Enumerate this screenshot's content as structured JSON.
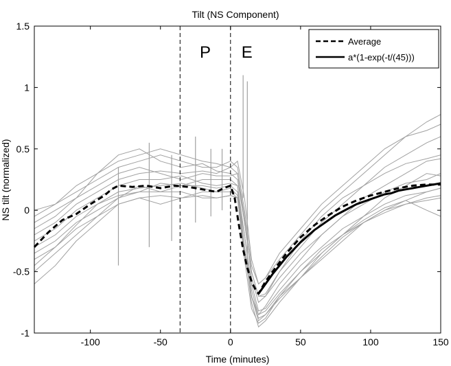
{
  "chart_data": {
    "type": "line",
    "title": "Tilt (NS Component)",
    "xlabel": "Time (minutes)",
    "ylabel": "NS tilt (normalized)",
    "xlim": [
      -140,
      150
    ],
    "ylim": [
      -1,
      1.5
    ],
    "xticks": [
      -100,
      -50,
      0,
      50,
      100,
      150
    ],
    "yticks": [
      -1,
      -0.5,
      0,
      0.5,
      1,
      1.5
    ],
    "grid": false,
    "legend_position": "top-right",
    "phase_lines": [
      {
        "x": -36,
        "label": "P"
      },
      {
        "x": 0,
        "label": "E"
      }
    ],
    "series": [
      {
        "name": "Average",
        "style": "dashed",
        "color": "#000000",
        "x": [
          -140,
          -130,
          -120,
          -110,
          -100,
          -90,
          -85,
          -80,
          -70,
          -60,
          -50,
          -40,
          -30,
          -20,
          -10,
          -5,
          0,
          3,
          6,
          9,
          12,
          15,
          18,
          20,
          22,
          25,
          30,
          40,
          50,
          60,
          70,
          80,
          90,
          100,
          110,
          120,
          130,
          140,
          150
        ],
        "y": [
          -0.3,
          -0.18,
          -0.08,
          -0.03,
          0.05,
          0.12,
          0.17,
          0.2,
          0.19,
          0.2,
          0.18,
          0.2,
          0.19,
          0.17,
          0.15,
          0.18,
          0.2,
          0.1,
          -0.12,
          -0.32,
          -0.47,
          -0.58,
          -0.65,
          -0.68,
          -0.64,
          -0.58,
          -0.5,
          -0.35,
          -0.22,
          -0.12,
          -0.04,
          0.03,
          0.08,
          0.12,
          0.15,
          0.18,
          0.2,
          0.21,
          0.21
        ]
      },
      {
        "name": "a*(1-exp(-t/(45)))",
        "style": "solid",
        "color": "#000000",
        "x": [
          20,
          25,
          30,
          35,
          40,
          45,
          50,
          55,
          60,
          65,
          70,
          75,
          80,
          85,
          90,
          95,
          100,
          105,
          110,
          115,
          120,
          125,
          130,
          135,
          140,
          145,
          150
        ],
        "y": [
          -0.68,
          -0.6,
          -0.52,
          -0.45,
          -0.38,
          -0.32,
          -0.26,
          -0.21,
          -0.16,
          -0.12,
          -0.08,
          -0.04,
          -0.01,
          0.02,
          0.05,
          0.07,
          0.09,
          0.11,
          0.13,
          0.14,
          0.16,
          0.17,
          0.18,
          0.19,
          0.2,
          0.21,
          0.22
        ]
      }
    ],
    "individual_traces": {
      "color": "#a0a0a0",
      "x": [
        -140,
        -125,
        -110,
        -95,
        -80,
        -65,
        -50,
        -35,
        -20,
        -10,
        0,
        5,
        10,
        15,
        20,
        25,
        35,
        50,
        65,
        80,
        95,
        110,
        125,
        140,
        150
      ],
      "y": [
        [
          -0.45,
          -0.3,
          -0.15,
          -0.05,
          0.1,
          0.15,
          0.22,
          0.2,
          0.25,
          0.25,
          0.25,
          0.2,
          -0.3,
          -0.7,
          -0.9,
          -0.85,
          -0.7,
          -0.55,
          -0.35,
          -0.2,
          -0.05,
          0.1,
          0.2,
          0.3,
          0.28
        ],
        [
          -0.2,
          -0.1,
          0.05,
          0.15,
          0.25,
          0.3,
          0.32,
          0.3,
          0.32,
          0.3,
          0.35,
          0.4,
          0.1,
          -0.4,
          -0.6,
          -0.55,
          -0.4,
          -0.2,
          0.0,
          0.15,
          0.3,
          0.45,
          0.6,
          0.72,
          0.78
        ],
        [
          -0.6,
          -0.45,
          -0.25,
          -0.1,
          0.05,
          0.1,
          0.12,
          0.1,
          0.15,
          0.15,
          0.18,
          0.12,
          -0.2,
          -0.6,
          -0.82,
          -0.8,
          -0.65,
          -0.45,
          -0.3,
          -0.15,
          -0.05,
          0.05,
          0.12,
          0.15,
          0.18
        ],
        [
          -0.1,
          0.0,
          0.1,
          0.3,
          0.45,
          0.5,
          0.4,
          0.35,
          0.38,
          0.32,
          0.3,
          0.25,
          -0.1,
          -0.5,
          -0.7,
          -0.68,
          -0.5,
          -0.3,
          -0.1,
          0.05,
          0.2,
          0.35,
          0.45,
          0.55,
          0.6
        ],
        [
          -0.35,
          -0.25,
          -0.1,
          0.0,
          0.1,
          0.2,
          0.15,
          0.2,
          0.2,
          0.18,
          0.2,
          0.15,
          -0.3,
          -0.75,
          -0.95,
          -0.9,
          -0.75,
          -0.55,
          -0.4,
          -0.25,
          -0.1,
          0.0,
          0.05,
          0.08,
          0.1
        ],
        [
          -0.25,
          -0.15,
          0.0,
          0.1,
          0.2,
          0.25,
          0.25,
          0.28,
          0.22,
          0.2,
          0.22,
          0.2,
          -0.2,
          -0.65,
          -0.85,
          -0.78,
          -0.6,
          -0.4,
          -0.2,
          -0.05,
          0.05,
          0.15,
          0.22,
          0.25,
          0.3
        ],
        [
          0.0,
          0.05,
          0.15,
          0.25,
          0.35,
          0.4,
          0.45,
          0.4,
          0.35,
          0.35,
          0.4,
          0.35,
          0.0,
          -0.45,
          -0.6,
          -0.55,
          -0.35,
          -0.15,
          0.05,
          0.2,
          0.35,
          0.5,
          0.6,
          0.65,
          0.7
        ],
        [
          -0.5,
          -0.35,
          -0.2,
          -0.05,
          0.05,
          0.1,
          0.05,
          0.1,
          0.12,
          0.1,
          0.12,
          0.1,
          -0.4,
          -0.8,
          -0.92,
          -0.88,
          -0.7,
          -0.5,
          -0.35,
          -0.2,
          -0.1,
          -0.02,
          0.05,
          0.1,
          0.12
        ],
        [
          -0.15,
          -0.05,
          0.1,
          0.2,
          0.3,
          0.35,
          0.3,
          0.25,
          0.3,
          0.28,
          0.28,
          0.3,
          -0.1,
          -0.5,
          -0.7,
          -0.7,
          -0.55,
          -0.35,
          -0.2,
          -0.05,
          0.1,
          0.2,
          0.3,
          0.4,
          0.42
        ],
        [
          -0.4,
          -0.3,
          -0.12,
          0.05,
          0.15,
          0.18,
          0.2,
          0.22,
          0.18,
          0.15,
          0.15,
          0.1,
          -0.35,
          -0.7,
          -0.85,
          -0.82,
          -0.68,
          -0.5,
          -0.32,
          -0.2,
          -0.08,
          0.02,
          0.08,
          0.0,
          -0.05
        ],
        [
          -0.05,
          0.05,
          0.2,
          0.3,
          0.4,
          0.45,
          0.5,
          0.45,
          0.4,
          0.38,
          0.35,
          0.3,
          -0.05,
          -0.55,
          -0.75,
          -0.7,
          -0.5,
          -0.25,
          -0.05,
          0.1,
          0.2,
          0.3,
          0.38,
          0.42,
          0.45
        ],
        [
          -0.3,
          -0.2,
          -0.05,
          0.05,
          0.12,
          0.15,
          0.15,
          0.15,
          0.1,
          0.1,
          0.12,
          0.1,
          -0.3,
          -0.7,
          -0.88,
          -0.85,
          -0.72,
          -0.55,
          -0.38,
          -0.22,
          -0.1,
          0.0,
          0.08,
          0.15,
          0.18
        ]
      ]
    },
    "spikes": [
      {
        "x": -80,
        "min": -0.45,
        "max": 0.35
      },
      {
        "x": -58,
        "min": -0.3,
        "max": 0.55
      },
      {
        "x": -42,
        "min": -0.25,
        "max": 0.45
      },
      {
        "x": -25,
        "min": -0.1,
        "max": 0.6
      },
      {
        "x": -14,
        "min": -0.05,
        "max": 0.5
      },
      {
        "x": -6,
        "min": 0.0,
        "max": 0.5
      },
      {
        "x": 9,
        "min": 0.1,
        "max": 1.1
      },
      {
        "x": 12,
        "min": -0.5,
        "max": 1.05
      }
    ]
  }
}
